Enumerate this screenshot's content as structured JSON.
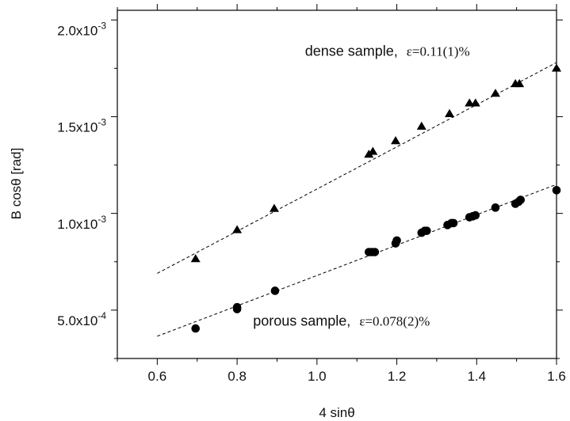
{
  "chart_data": {
    "type": "scatter",
    "xlabel": "4 sinθ",
    "ylabel": "B cosθ [rad]",
    "xlim": [
      0.5,
      1.6
    ],
    "ylim": [
      0.0003,
      0.0021
    ],
    "x_ticks": [
      {
        "value": 0.6,
        "label": "0.6"
      },
      {
        "value": 0.8,
        "label": "0.8"
      },
      {
        "value": 1.0,
        "label": "1.0"
      },
      {
        "value": 1.2,
        "label": "1.2"
      },
      {
        "value": 1.4,
        "label": "1.4"
      },
      {
        "value": 1.6,
        "label": "1.6"
      }
    ],
    "y_ticks": [
      {
        "value": 0.0005,
        "mantissa": "5.0x10",
        "exponent": "-4"
      },
      {
        "value": 0.001,
        "mantissa": "1.0x10",
        "exponent": "-3"
      },
      {
        "value": 0.0015,
        "mantissa": "1.5x10",
        "exponent": "-3"
      },
      {
        "value": 0.002,
        "mantissa": "2.0x10",
        "exponent": "-3"
      }
    ],
    "grid": false,
    "series": [
      {
        "marker": "triangle",
        "color": "#000000",
        "points": [
          [
            0.696,
            0.000815
          ],
          [
            0.8,
            0.000965
          ],
          [
            0.893,
            0.001075
          ],
          [
            1.13,
            0.001355
          ],
          [
            1.14,
            0.00137
          ],
          [
            1.197,
            0.001425
          ],
          [
            1.262,
            0.0015
          ],
          [
            1.332,
            0.001565
          ],
          [
            1.382,
            0.00162
          ],
          [
            1.397,
            0.00162
          ],
          [
            1.447,
            0.00167
          ],
          [
            1.497,
            0.00172
          ],
          [
            1.507,
            0.00172
          ],
          [
            1.6,
            0.0018
          ]
        ],
        "fit": {
          "x": [
            0.6,
            1.6
          ],
          "y": [
            0.00074,
            0.00183
          ]
        }
      },
      {
        "marker": "circle",
        "color": "#000000",
        "points": [
          [
            0.696,
            0.000455
          ],
          [
            0.8,
            0.000555
          ],
          [
            0.8,
            0.000565
          ],
          [
            0.895,
            0.00065
          ],
          [
            1.13,
            0.00085
          ],
          [
            1.137,
            0.00085
          ],
          [
            1.145,
            0.00085
          ],
          [
            1.197,
            0.000895
          ],
          [
            1.2,
            0.00091
          ],
          [
            1.262,
            0.00095
          ],
          [
            1.27,
            0.00096
          ],
          [
            1.275,
            0.00096
          ],
          [
            1.327,
            0.00099
          ],
          [
            1.337,
            0.001
          ],
          [
            1.342,
            0.001
          ],
          [
            1.382,
            0.00103
          ],
          [
            1.39,
            0.001035
          ],
          [
            1.397,
            0.00104
          ],
          [
            1.447,
            0.00108
          ],
          [
            1.497,
            0.0011
          ],
          [
            1.505,
            0.00111
          ],
          [
            1.51,
            0.00112
          ],
          [
            1.6,
            0.00117
          ]
        ],
        "fit": {
          "x": [
            0.6,
            1.6
          ],
          "y": [
            0.000415,
            0.0012
          ]
        }
      }
    ],
    "annotations": [
      {
        "main": "dense sample,",
        "eq": "ε=0.11(1)%",
        "x": 0.97,
        "y": 0.001865
      },
      {
        "main": "porous sample,",
        "eq": "ε=0.078(2)%",
        "x": 0.84,
        "y": 0.00047
      }
    ]
  }
}
